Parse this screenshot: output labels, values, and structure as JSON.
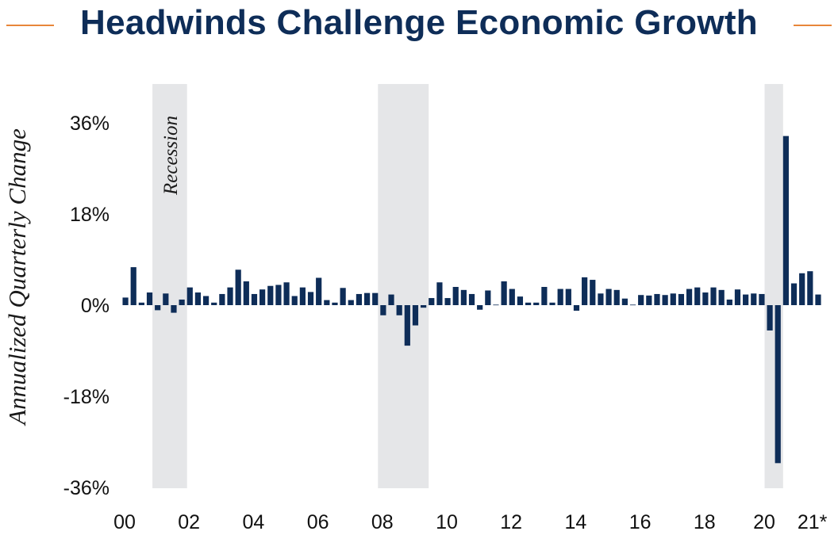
{
  "colors": {
    "title": "#0e2d58",
    "bars": "#0e2d58",
    "accent_line": "#e8863a",
    "shade": "#e5e6e8"
  },
  "chart_data": {
    "type": "bar",
    "title": "Headwinds Challenge Economic Growth",
    "ylabel": "Annualized Quarterly Change",
    "xlabel": "",
    "ylim": [
      -36,
      36
    ],
    "yticks": [
      "36%",
      "18%",
      "0%",
      "-18%",
      "-36%"
    ],
    "ytick_values": [
      36,
      18,
      0,
      -18,
      -36
    ],
    "xticks": [
      "00",
      "02",
      "04",
      "06",
      "08",
      "10",
      "12",
      "14",
      "16",
      "18",
      "20",
      "21*"
    ],
    "xtick_years": [
      2000,
      2002,
      2004,
      2006,
      2008,
      2010,
      2012,
      2014,
      2016,
      2018,
      2020,
      2021
    ],
    "grid": false,
    "legend": "none",
    "x_start": "2000 Q1",
    "frequency": "quarterly",
    "series": [
      {
        "values": [
          1.5,
          7.5,
          0.5,
          2.5,
          -1.0,
          2.3,
          -1.5,
          1.1,
          3.5,
          2.5,
          1.8,
          0.5,
          2.2,
          3.5,
          7.0,
          4.7,
          2.2,
          3.1,
          3.8,
          4.0,
          4.5,
          1.8,
          3.5,
          2.6,
          5.4,
          1.0,
          0.5,
          3.4,
          1.0,
          2.2,
          2.4,
          2.4,
          -2.0,
          2.1,
          -2.0,
          -8.0,
          -4.0,
          -0.5,
          1.4,
          4.5,
          1.4,
          3.6,
          3.0,
          2.2,
          -0.9,
          2.9,
          0.1,
          4.7,
          3.2,
          1.7,
          0.5,
          0.5,
          3.6,
          0.5,
          3.2,
          3.2,
          -1.1,
          5.5,
          5.0,
          2.3,
          3.2,
          3.0,
          1.3,
          0.1,
          2.0,
          1.9,
          2.2,
          2.0,
          2.3,
          2.2,
          3.2,
          3.5,
          2.5,
          3.5,
          3.0,
          1.1,
          3.1,
          2.1,
          2.3,
          2.2,
          -5.0,
          -31.2,
          33.4,
          4.3,
          6.3,
          6.7,
          2.1
        ]
      }
    ],
    "shaded_regions": [
      {
        "label": "Recession",
        "start": "2001 Q1",
        "end": "2001 Q4"
      },
      {
        "label": "",
        "start": "2008 Q1",
        "end": "2009 Q2"
      },
      {
        "label": "",
        "start": "2020 Q1",
        "end": "2020 Q2"
      }
    ]
  }
}
